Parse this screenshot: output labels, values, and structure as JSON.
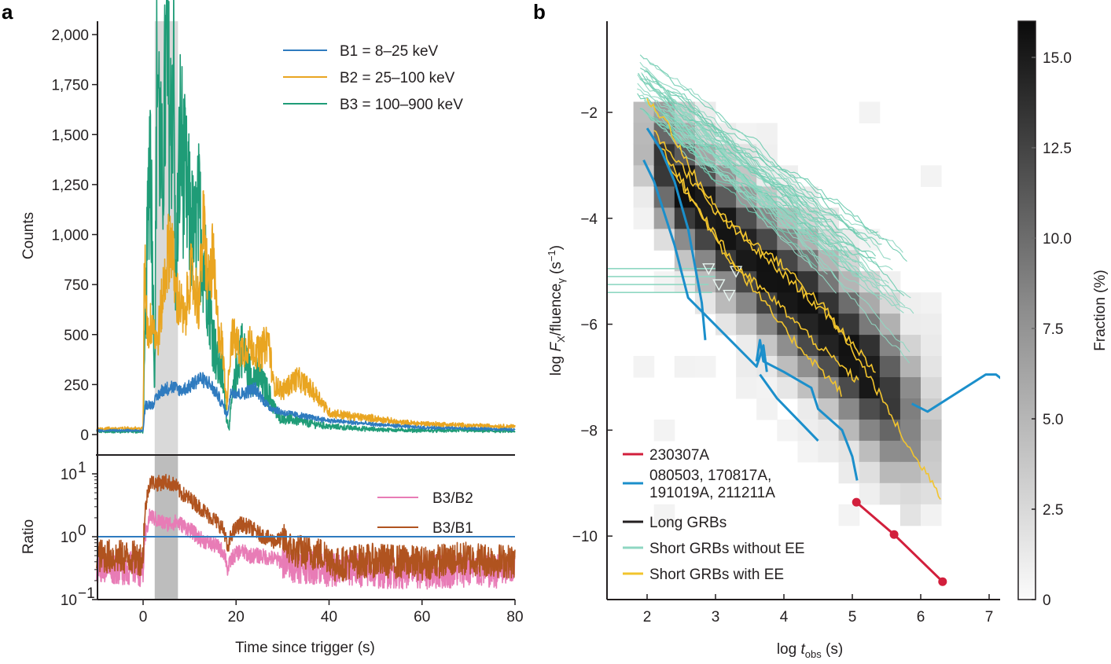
{
  "chart_data": [
    {
      "panel": "a",
      "type": "line",
      "subplots": [
        {
          "name": "counts",
          "xlabel": "Time since trigger (s)",
          "ylabel": "Counts",
          "xlim": [
            -10,
            80
          ],
          "ylim": [
            -100,
            2060
          ],
          "yscale": "linear",
          "yticks": [
            0,
            250,
            500,
            750,
            1000,
            1250,
            1500,
            1750,
            2000
          ],
          "ytick_labels": [
            "0",
            "250",
            "500",
            "750",
            "1,000",
            "1,250",
            "1,500",
            "1,750",
            "2,000"
          ],
          "highlight_band": [
            2.5,
            7.5
          ],
          "legend_position": "top-right",
          "series": [
            {
              "name": "B1 = 8–25 keV",
              "color": "#2f7bbf",
              "x": [
                -10,
                0,
                0.5,
                2,
                4,
                6,
                8,
                10,
                12,
                14,
                16,
                17.5,
                18,
                19,
                21,
                24,
                27,
                30,
                35,
                40,
                50,
                60,
                70,
                80
              ],
              "y": [
                20,
                20,
                150,
                150,
                220,
                240,
                220,
                240,
                280,
                260,
                200,
                130,
                90,
                220,
                200,
                230,
                140,
                110,
                90,
                70,
                50,
                35,
                30,
                25
              ]
            },
            {
              "name": "B2 = 25–100 keV",
              "color": "#e9a521",
              "x": [
                -10,
                0,
                0.3,
                1,
                2,
                3,
                4,
                5,
                6,
                7,
                8,
                9,
                10,
                11,
                12,
                13,
                14,
                15,
                16,
                17,
                18,
                19,
                21,
                23,
                25,
                27,
                28,
                30,
                33,
                35,
                38,
                40,
                45,
                50,
                55,
                60,
                70,
                80
              ],
              "y": [
                30,
                30,
                880,
                500,
                580,
                450,
                650,
                850,
                1000,
                700,
                650,
                550,
                800,
                750,
                650,
                1050,
                750,
                880,
                550,
                450,
                150,
                500,
                420,
                450,
                400,
                480,
                250,
                220,
                280,
                250,
                180,
                110,
                90,
                80,
                60,
                55,
                45,
                40
              ]
            },
            {
              "name": "B3 = 100–900 keV",
              "color": "#1f9c77",
              "x": [
                -10,
                0,
                0.5,
                1.5,
                2.5,
                3,
                4,
                5,
                6,
                6.5,
                7,
                8,
                9,
                10,
                11,
                12,
                13,
                14,
                15,
                16,
                17,
                18,
                18.5,
                19,
                21,
                23,
                25,
                27,
                29,
                31,
                35,
                40,
                50,
                60,
                70,
                80
              ],
              "y": [
                15,
                15,
                520,
                1550,
                250,
                1950,
                1200,
                1850,
                1500,
                1970,
                700,
                1500,
                1250,
                1100,
                950,
                1100,
                900,
                730,
                500,
                350,
                300,
                80,
                30,
                150,
                450,
                300,
                280,
                200,
                90,
                80,
                60,
                40,
                25,
                20,
                20,
                15
              ]
            }
          ]
        },
        {
          "name": "ratio",
          "xlabel": "Time since trigger (s)",
          "ylabel": "Ratio",
          "xlim": [
            -10,
            80
          ],
          "ylim": [
            0.1,
            20
          ],
          "yscale": "log",
          "yticks": [
            0.1,
            1,
            10
          ],
          "ytick_labels": [
            "10−1",
            "100",
            "101"
          ],
          "ytick_base": "10",
          "ytick_exponents": [
            "−1",
            "0",
            "1"
          ],
          "xticks": [
            0,
            20,
            40,
            60,
            80
          ],
          "xtick_labels": [
            "0",
            "20",
            "40",
            "60",
            "80"
          ],
          "reference_line": {
            "y": 1,
            "color": "#2f7bbf"
          },
          "highlight_band": [
            2.5,
            7.5
          ],
          "legend_position": "top-right",
          "series": [
            {
              "name": "B3/B2",
              "color": "#e87cb6",
              "x": [
                -10,
                0,
                0.5,
                1.5,
                3,
                5,
                7,
                8,
                10,
                12,
                14,
                16,
                17.5,
                18.2,
                19,
                21,
                23,
                25,
                28,
                32,
                36,
                40,
                45,
                50,
                55,
                60,
                65,
                70,
                75,
                80
              ],
              "y": [
                0.35,
                0.3,
                0.9,
                2.2,
                1.8,
                1.6,
                1.7,
                1.6,
                1.3,
                0.95,
                0.8,
                0.7,
                0.55,
                0.28,
                0.45,
                0.6,
                0.5,
                0.5,
                0.45,
                0.35,
                0.33,
                0.3,
                0.3,
                0.28,
                0.28,
                0.27,
                0.28,
                0.3,
                0.28,
                0.3
              ]
            },
            {
              "name": "B3/B1",
              "color": "#b0531f",
              "x": [
                -10,
                0,
                0.5,
                1.5,
                3,
                5,
                7,
                8,
                10,
                12,
                14,
                16,
                17.5,
                18.2,
                19,
                21,
                23,
                25,
                28,
                30,
                32,
                36,
                40,
                41,
                45,
                50,
                55,
                60,
                65,
                70,
                75,
                80
              ],
              "y": [
                0.5,
                0.45,
                2.5,
                7.5,
                7.0,
                7.5,
                6.5,
                5.0,
                4.0,
                3.0,
                2.2,
                1.7,
                1.2,
                0.55,
                1.1,
                1.6,
                1.4,
                1.1,
                0.85,
                0.9,
                0.6,
                0.55,
                0.5,
                0.35,
                0.4,
                0.42,
                0.4,
                0.38,
                0.42,
                0.45,
                0.42,
                0.4
              ]
            }
          ]
        }
      ]
    },
    {
      "panel": "b",
      "type": "line",
      "xlabel": "log t_obs (s)",
      "xlabel_main": "log ",
      "xlabel_italic": "t",
      "xlabel_sub": "obs",
      "xlabel_unit": " (s)",
      "ylabel": "log F_X/fluence_γ (s−1)",
      "ylabel_parts": {
        "pre": "log ",
        "italic": "F",
        "sub1": "X",
        "mid": "/fluence",
        "sub2": "γ",
        "post": " (s",
        "sup": "−1",
        "end": ")"
      },
      "xlim": [
        1.4,
        7.2
      ],
      "ylim": [
        -11.2,
        -0.3
      ],
      "xticks": [
        2,
        3,
        4,
        5,
        6,
        7
      ],
      "yticks": [
        -2,
        -4,
        -6,
        -8,
        -10
      ],
      "ytick_labels": [
        "−2",
        "−4",
        "−6",
        "−8",
        "−10"
      ],
      "legend_position": "bottom-left",
      "heatmap": {
        "name": "Long GRBs density",
        "colorbar_label": "Fraction (%)",
        "colorbar_range": [
          0,
          16
        ],
        "colorbar_ticks": [
          0,
          2.5,
          5.0,
          7.5,
          10.0,
          12.5,
          15.0
        ],
        "colorbar_tick_labels": [
          "0",
          "2.5",
          "5.0",
          "7.5",
          "10.0",
          "12.5",
          "15.0"
        ],
        "ridge": {
          "x": [
            1.9,
            2.5,
            3.0,
            3.5,
            4.0,
            4.5,
            5.0,
            5.5,
            6.0
          ],
          "y": [
            -2.4,
            -3.4,
            -4.1,
            -4.7,
            -5.3,
            -5.9,
            -6.6,
            -7.3,
            -8.0
          ]
        },
        "peak_fraction": 15.5
      },
      "series": [
        {
          "name": "230307A",
          "color": "#d21f3c",
          "markers": true,
          "x": [
            5.06,
            5.61,
            6.32
          ],
          "y": [
            -9.36,
            -9.97,
            -10.86
          ]
        },
        {
          "name": "080503, 170817A, 191019A, 211211A",
          "color": "#1b8fcb",
          "lines": [
            {
              "x": [
                1.95,
                2.1,
                2.25,
                2.4,
                2.5,
                2.6,
                3.6,
                3.7,
                3.75
              ],
              "y": [
                -2.9,
                -3.3,
                -3.9,
                -4.5,
                -5.0,
                -5.5,
                -6.8,
                -6.4,
                -6.9
              ]
            },
            {
              "x": [
                2.0,
                2.2,
                2.4,
                2.6,
                2.8,
                2.85
              ],
              "y": [
                -2.3,
                -2.7,
                -3.3,
                -4.2,
                -5.6,
                -6.3
              ]
            },
            {
              "x": [
                3.6,
                3.65,
                3.7,
                4.0,
                4.4,
                4.5,
                4.85,
                5.0,
                5.07
              ],
              "y": [
                -6.7,
                -6.3,
                -6.7,
                -6.9,
                -7.2,
                -7.6,
                -8.0,
                -8.5,
                -8.95
              ]
            },
            {
              "x": [
                3.65,
                3.9,
                4.2,
                4.5
              ],
              "y": [
                -6.95,
                -7.4,
                -7.8,
                -8.2
              ]
            },
            {
              "x": [
                5.87,
                6.1,
                6.95,
                7.1,
                7.2
              ],
              "y": [
                -7.5,
                -7.65,
                -6.95,
                -6.95,
                -7.05
              ]
            }
          ]
        },
        {
          "name": "Long GRBs",
          "color": "#231f20"
        },
        {
          "name": "Short GRBs without EE",
          "color": "#8fd7c2",
          "upper_limits": [
            {
              "x": [
                1.4,
                3.0
              ],
              "y": -4.95
            },
            {
              "x": [
                1.4,
                3.0
              ],
              "y": -5.1
            },
            {
              "x": [
                1.4,
                2.9
              ],
              "y": -5.25
            },
            {
              "x": [
                1.4,
                2.95
              ],
              "y": -5.4
            }
          ],
          "cluster": {
            "x_start": [
              1.85,
              2.4
            ],
            "y_start": [
              -1.3,
              -3.3
            ],
            "slope": [
              -1.2,
              -0.85
            ],
            "x_end": [
              4.2,
              5.9
            ],
            "count": 45
          }
        },
        {
          "name": "Short GRBs with EE",
          "color": "#f2c42d",
          "lines": [
            {
              "x": [
                2.0,
                2.3,
                2.6,
                3.0,
                3.5,
                4.0,
                4.6,
                5.0,
                5.3,
                5.6,
                5.9,
                6.2,
                6.3
              ],
              "y": [
                -1.8,
                -2.2,
                -3.0,
                -3.8,
                -4.4,
                -4.9,
                -5.7,
                -6.5,
                -7.1,
                -7.8,
                -8.5,
                -9.0,
                -9.35
              ]
            },
            {
              "x": [
                2.2,
                2.6,
                3.1,
                3.6,
                4.0,
                4.5,
                4.85
              ],
              "y": [
                -2.6,
                -3.5,
                -4.6,
                -5.4,
                -6.1,
                -6.8,
                -7.3
              ]
            },
            {
              "x": [
                2.1,
                2.5,
                3.0,
                3.5,
                4.2,
                4.9,
                5.35
              ],
              "y": [
                -2.4,
                -3.0,
                -3.9,
                -4.5,
                -5.3,
                -6.2,
                -6.9
              ]
            },
            {
              "x": [
                2.3,
                2.8,
                3.3,
                3.9,
                4.5,
                5.1
              ],
              "y": [
                -3.0,
                -3.9,
                -4.9,
                -5.6,
                -6.4,
                -7.1
              ]
            }
          ]
        }
      ]
    }
  ],
  "panels": {
    "a_label": "a",
    "b_label": "b"
  }
}
